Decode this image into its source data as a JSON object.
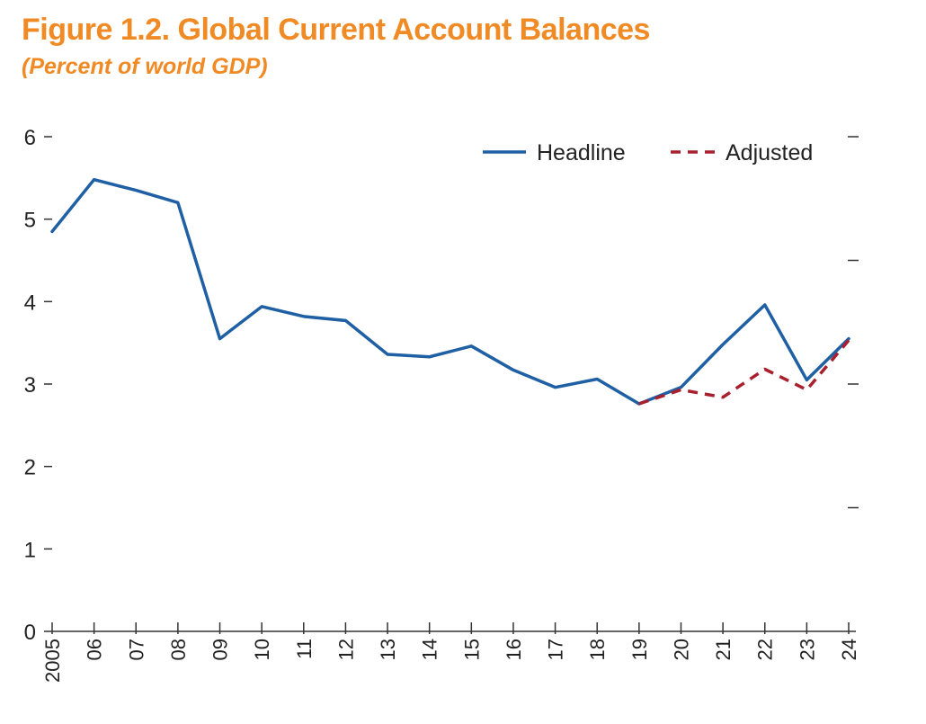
{
  "chart_data": {
    "type": "line",
    "title": "Figure 1.2. Global Current Account Balances",
    "subtitle": "(Percent of world GDP)",
    "xlabel": "",
    "ylabel": "",
    "ylim": [
      0,
      6
    ],
    "yticks": [
      "0",
      "1",
      "2",
      "3",
      "4",
      "5",
      "6"
    ],
    "categories": [
      "2005",
      "06",
      "07",
      "08",
      "09",
      "10",
      "11",
      "12",
      "13",
      "14",
      "15",
      "16",
      "17",
      "18",
      "19",
      "20",
      "21",
      "22",
      "23",
      "24"
    ],
    "series": [
      {
        "name": "Headline",
        "color": "#1f5fa3",
        "style": "solid",
        "values": [
          4.85,
          5.48,
          5.35,
          5.2,
          3.55,
          3.94,
          3.82,
          3.77,
          3.36,
          3.33,
          3.46,
          3.17,
          2.96,
          3.06,
          2.76,
          2.96,
          3.48,
          3.96,
          3.05,
          3.55
        ]
      },
      {
        "name": "Adjusted",
        "color": "#a8202e",
        "style": "dashed",
        "values": [
          null,
          null,
          null,
          null,
          null,
          null,
          null,
          null,
          null,
          null,
          null,
          null,
          null,
          null,
          2.76,
          2.93,
          2.84,
          3.18,
          2.93,
          3.53
        ]
      }
    ],
    "legend_position": "top-right",
    "grid": false
  }
}
